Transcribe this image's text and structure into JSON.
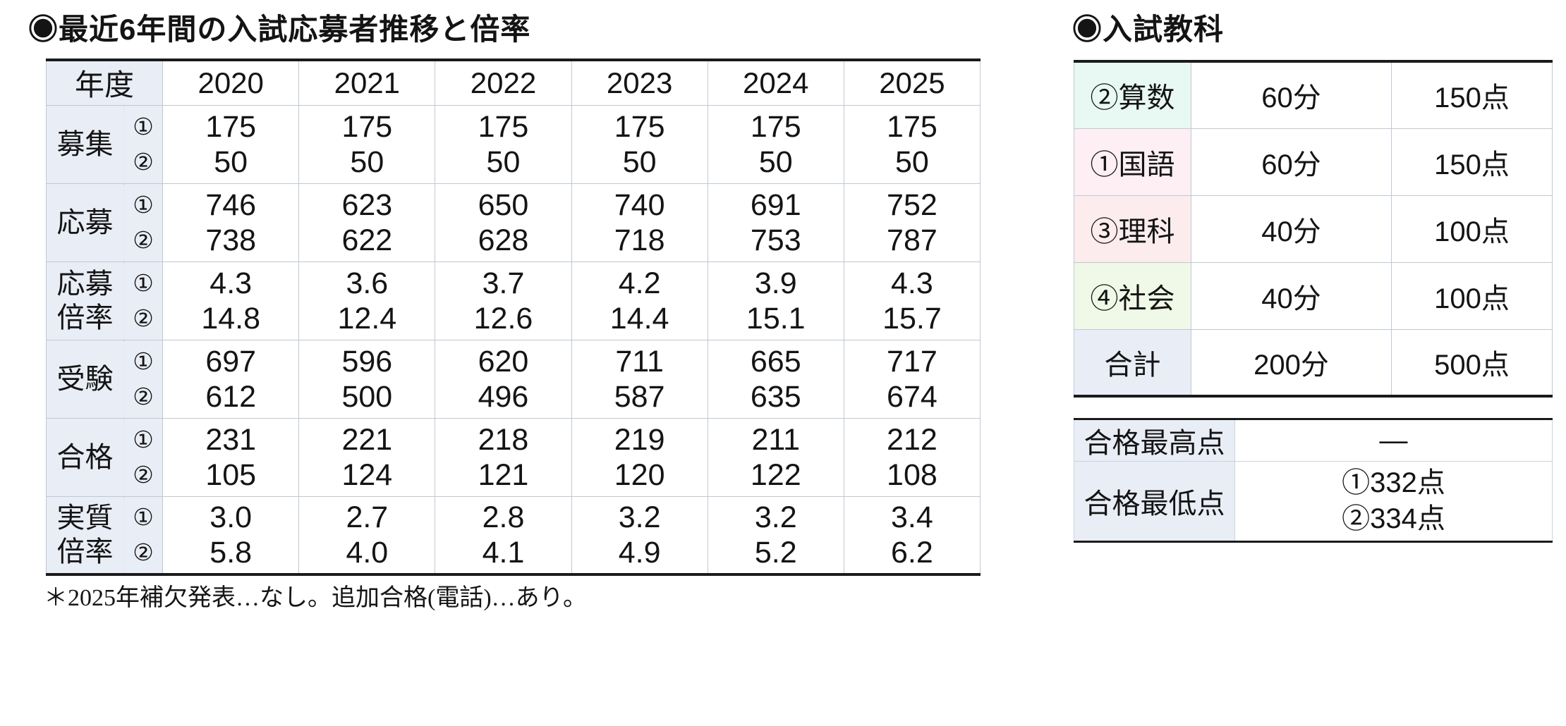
{
  "colors": {
    "label_bg": "#e9edf6",
    "thick_border": "#1b1b1b",
    "thin_border": "#c1c8d3",
    "subject_math_bg": "#e8f8f2",
    "subject_japanese_bg": "#fdeff3",
    "subject_science_bg": "#fcecee",
    "subject_social_bg": "#f0f8e7",
    "subject_total_bg": "#e9edf6"
  },
  "left": {
    "title": "◉最近6年間の入試応募者推移と倍率",
    "header": {
      "year_label": "年度",
      "years": [
        "2020",
        "2021",
        "2022",
        "2023",
        "2024",
        "2025"
      ]
    },
    "rows": [
      {
        "label": "募集",
        "marks": [
          "①",
          "②"
        ],
        "values": [
          [
            "175",
            "50"
          ],
          [
            "175",
            "50"
          ],
          [
            "175",
            "50"
          ],
          [
            "175",
            "50"
          ],
          [
            "175",
            "50"
          ],
          [
            "175",
            "50"
          ]
        ]
      },
      {
        "label": "応募",
        "marks": [
          "①",
          "②"
        ],
        "values": [
          [
            "746",
            "738"
          ],
          [
            "623",
            "622"
          ],
          [
            "650",
            "628"
          ],
          [
            "740",
            "718"
          ],
          [
            "691",
            "753"
          ],
          [
            "752",
            "787"
          ]
        ]
      },
      {
        "label": "応募\n倍率",
        "marks": [
          "①",
          "②"
        ],
        "values": [
          [
            "4.3",
            "14.8"
          ],
          [
            "3.6",
            "12.4"
          ],
          [
            "3.7",
            "12.6"
          ],
          [
            "4.2",
            "14.4"
          ],
          [
            "3.9",
            "15.1"
          ],
          [
            "4.3",
            "15.7"
          ]
        ]
      },
      {
        "label": "受験",
        "marks": [
          "①",
          "②"
        ],
        "values": [
          [
            "697",
            "612"
          ],
          [
            "596",
            "500"
          ],
          [
            "620",
            "496"
          ],
          [
            "711",
            "587"
          ],
          [
            "665",
            "635"
          ],
          [
            "717",
            "674"
          ]
        ]
      },
      {
        "label": "合格",
        "marks": [
          "①",
          "②"
        ],
        "values": [
          [
            "231",
            "105"
          ],
          [
            "221",
            "124"
          ],
          [
            "218",
            "121"
          ],
          [
            "219",
            "120"
          ],
          [
            "211",
            "122"
          ],
          [
            "212",
            "108"
          ]
        ]
      },
      {
        "label": "実質\n倍率",
        "marks": [
          "①",
          "②"
        ],
        "values": [
          [
            "3.0",
            "5.8"
          ],
          [
            "2.7",
            "4.0"
          ],
          [
            "2.8",
            "4.1"
          ],
          [
            "3.2",
            "4.9"
          ],
          [
            "3.2",
            "5.2"
          ],
          [
            "3.4",
            "6.2"
          ]
        ]
      }
    ],
    "footnote": "＊2025年補欠発表…なし。追加合格(電話)…あり。"
  },
  "right": {
    "title": "◉入試教科",
    "subjects": [
      {
        "name": "②算数",
        "time": "60分",
        "points": "150点",
        "color": "#e8f8f2"
      },
      {
        "name": "①国語",
        "time": "60分",
        "points": "150点",
        "color": "#fdeff3"
      },
      {
        "name": "③理科",
        "time": "40分",
        "points": "100点",
        "color": "#fcecee"
      },
      {
        "name": "④社会",
        "time": "40分",
        "points": "100点",
        "color": "#f0f8e7"
      },
      {
        "name": "合計",
        "time": "200分",
        "points": "500点",
        "color": "#e9edf6"
      }
    ],
    "scores": [
      {
        "label": "合格最高点",
        "value_lines": [
          "—"
        ]
      },
      {
        "label": "合格最低点",
        "value_lines": [
          "①332点",
          "②334点"
        ]
      }
    ]
  }
}
